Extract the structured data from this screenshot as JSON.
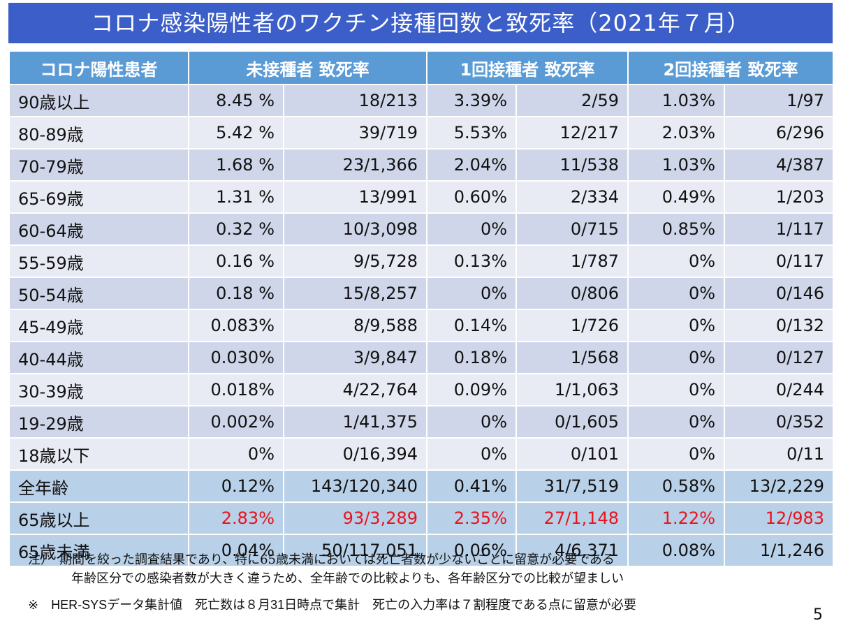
{
  "title": "コロナ感染陽性者のワクチン接種回数と致死率（2021年７月）",
  "headers": [
    "コロナ陽性患者",
    "未接種者 致死率",
    "1回接種者 致死率",
    "2回接種者 致死率"
  ],
  "rows": [
    {
      "label": "90歳以上",
      "u_rate": "8.45 %",
      "u_ratio": "18/213",
      "o_rate": "3.39%",
      "o_ratio": "2/59",
      "t_rate": "1.03%",
      "t_ratio": "1/97"
    },
    {
      "label": "80-89歳",
      "u_rate": "5.42 %",
      "u_ratio": "39/719",
      "o_rate": "5.53%",
      "o_ratio": "12/217",
      "t_rate": "2.03%",
      "t_ratio": "6/296"
    },
    {
      "label": "70-79歳",
      "u_rate": "1.68 %",
      "u_ratio": "23/1,366",
      "o_rate": "2.04%",
      "o_ratio": "11/538",
      "t_rate": "1.03%",
      "t_ratio": "4/387"
    },
    {
      "label": "65-69歳",
      "u_rate": "1.31 %",
      "u_ratio": "13/991",
      "o_rate": "0.60%",
      "o_ratio": "2/334",
      "t_rate": "0.49%",
      "t_ratio": "1/203"
    },
    {
      "label": "60-64歳",
      "u_rate": "0.32 %",
      "u_ratio": "10/3,098",
      "o_rate": "0%",
      "o_ratio": "0/715",
      "t_rate": "0.85%",
      "t_ratio": "1/117"
    },
    {
      "label": "55-59歳",
      "u_rate": "0.16 %",
      "u_ratio": "9/5,728",
      "o_rate": "0.13%",
      "o_ratio": "1/787",
      "t_rate": "0%",
      "t_ratio": "0/117"
    },
    {
      "label": "50-54歳",
      "u_rate": "0.18 %",
      "u_ratio": "15/8,257",
      "o_rate": "0%",
      "o_ratio": "0/806",
      "t_rate": "0%",
      "t_ratio": "0/146"
    },
    {
      "label": "45-49歳",
      "u_rate": "0.083%",
      "u_ratio": "8/9,588",
      "o_rate": "0.14%",
      "o_ratio": "1/726",
      "t_rate": "0%",
      "t_ratio": "0/132"
    },
    {
      "label": "40-44歳",
      "u_rate": "0.030%",
      "u_ratio": "3/9,847",
      "o_rate": "0.18%",
      "o_ratio": "1/568",
      "t_rate": "0%",
      "t_ratio": "0/127"
    },
    {
      "label": "30-39歳",
      "u_rate": "0.018%",
      "u_ratio": "4/22,764",
      "o_rate": "0.09%",
      "o_ratio": "1/1,063",
      "t_rate": "0%",
      "t_ratio": "0/244"
    },
    {
      "label": "19-29歳",
      "u_rate": "0.002%",
      "u_ratio": "1/41,375",
      "o_rate": "0%",
      "o_ratio": "0/1,605",
      "t_rate": "0%",
      "t_ratio": "0/352"
    },
    {
      "label": "18歳以下",
      "u_rate": "0%",
      "u_ratio": "0/16,394",
      "o_rate": "0%",
      "o_ratio": "0/101",
      "t_rate": "0%",
      "t_ratio": "0/11"
    },
    {
      "label": "全年齢",
      "u_rate": "0.12%",
      "u_ratio": "143/120,340",
      "o_rate": "0.41%",
      "o_ratio": "31/7,519",
      "t_rate": "0.58%",
      "t_ratio": "13/2,229",
      "style": "summary"
    },
    {
      "label": "65歳以上",
      "u_rate": "2.83%",
      "u_ratio": "93/3,289",
      "o_rate": "2.35%",
      "o_ratio": "27/1,148",
      "t_rate": "1.22%",
      "t_ratio": "12/983",
      "style": "summary highlight"
    },
    {
      "label": "65歳未満",
      "u_rate": "0.04%",
      "u_ratio": "50/117,051",
      "o_rate": "0.06%",
      "o_ratio": "4/6,371",
      "t_rate": "0.08%",
      "t_ratio": "1/1,246",
      "style": "summary"
    }
  ],
  "notes": {
    "line1": "注）　期間を絞った調査結果であり、特に65歳未満においては死亡者数が少ないことに留意が必要である",
    "line2": "年齢区分での感染者数が大きく違うため、全年齢での比較よりも、各年齢区分での比較が望ましい"
  },
  "source": "※　HER-SYSデータ集計値　死亡数は８月31日時点で集計　死亡の入力率は７割程度である点に留意が必要",
  "page_number": "5",
  "colors": {
    "title_bg": "#3b5ec9",
    "header_bg": "#5b9bd5",
    "row_dark": "#cfd6e9",
    "row_light": "#e8ebf4",
    "summary_row": "#b8d0e8",
    "highlight_text": "#e8141e"
  }
}
